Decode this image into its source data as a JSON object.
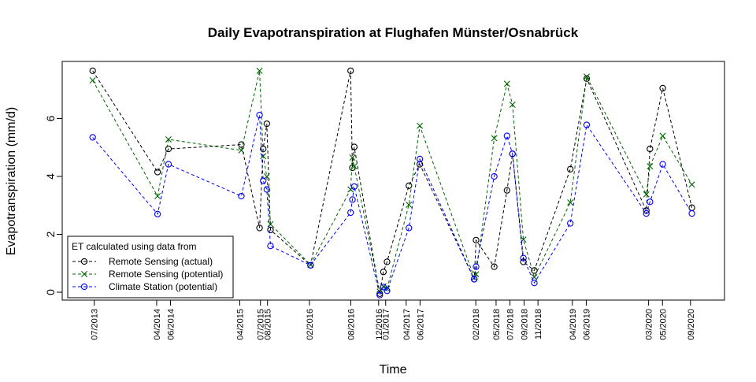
{
  "chart_data": {
    "type": "line",
    "title": "Daily Evapotranspiration at Flughafen Münster/Osnabrück",
    "xlabel": "Time",
    "ylabel": "Evapotranspiration (mm/d)",
    "ylim": [
      -0.2,
      7.9
    ],
    "y_ticks": [
      0,
      2,
      4,
      6
    ],
    "grid": false,
    "x_tick_labels": [
      "07/2013",
      "04/2014",
      "06/2014",
      "04/2015",
      "07/2015",
      "08/2015",
      "02/2016",
      "08/2016",
      "12/2016",
      "01/2017",
      "04/2017",
      "06/2017",
      "02/2018",
      "05/2018",
      "07/2018",
      "09/2018",
      "11/2018",
      "04/2019",
      "06/2019",
      "03/2020",
      "05/2020",
      "09/2020"
    ],
    "legend": {
      "title": "ET calculated using data from",
      "position": "bottom-left"
    },
    "series": [
      {
        "name": "Remote Sensing (actual)",
        "color": "#000000",
        "marker": "circle",
        "line": "dashed",
        "x": [
          "2013-07-08",
          "2014-04-19",
          "2014-06-06",
          "2015-04-22",
          "2015-07-11",
          "2015-07-27",
          "2015-08-12",
          "2015-08-28",
          "2016-02-20",
          "2016-08-14",
          "2016-08-22",
          "2016-08-30",
          "2016-12-20",
          "2017-01-05",
          "2017-01-21",
          "2017-04-27",
          "2017-06-14",
          "2018-02-08",
          "2018-02-16",
          "2018-05-07",
          "2018-07-02",
          "2018-07-26",
          "2018-09-12",
          "2018-10-30",
          "2019-04-06",
          "2019-06-17",
          "2020-03-05",
          "2020-03-21",
          "2020-05-16",
          "2020-09-21"
        ],
        "y": [
          7.65,
          4.15,
          4.95,
          5.1,
          2.22,
          4.95,
          5.82,
          2.15,
          0.93,
          7.65,
          4.3,
          5.02,
          -0.05,
          0.7,
          1.05,
          3.68,
          4.42,
          0.45,
          1.8,
          0.88,
          3.52,
          4.78,
          1.05,
          0.75,
          4.25,
          7.38,
          2.82,
          4.95,
          7.05,
          2.92
        ]
      },
      {
        "name": "Remote Sensing (potential)",
        "color": "#006400",
        "marker": "x",
        "line": "dashed",
        "x": [
          "2013-07-08",
          "2014-04-19",
          "2014-06-06",
          "2015-04-22",
          "2015-07-11",
          "2015-07-27",
          "2015-08-12",
          "2015-08-28",
          "2016-02-20",
          "2016-08-14",
          "2016-08-22",
          "2016-08-30",
          "2016-12-20",
          "2017-01-05",
          "2017-01-21",
          "2017-04-27",
          "2017-06-14",
          "2018-02-08",
          "2018-02-16",
          "2018-05-07",
          "2018-07-02",
          "2018-07-26",
          "2018-09-12",
          "2018-10-30",
          "2019-04-06",
          "2019-06-17",
          "2020-03-05",
          "2020-03-21",
          "2020-05-16",
          "2020-09-21"
        ],
        "y": [
          7.32,
          3.32,
          5.28,
          4.9,
          7.65,
          4.7,
          4.0,
          2.35,
          0.95,
          3.55,
          4.65,
          4.35,
          0.02,
          0.2,
          0.12,
          3.02,
          5.75,
          0.5,
          0.62,
          5.32,
          7.2,
          6.48,
          1.82,
          0.52,
          3.1,
          7.45,
          3.38,
          4.35,
          5.4,
          3.72
        ]
      },
      {
        "name": "Climate Station (potential)",
        "color": "#0000ff",
        "marker": "circle",
        "line": "dashed",
        "x": [
          "2013-07-08",
          "2014-04-19",
          "2014-06-06",
          "2015-04-22",
          "2015-07-11",
          "2015-07-27",
          "2015-08-12",
          "2015-08-28",
          "2016-02-20",
          "2016-08-14",
          "2016-08-22",
          "2016-08-30",
          "2016-12-20",
          "2017-01-05",
          "2017-01-21",
          "2017-04-27",
          "2017-06-14",
          "2018-02-08",
          "2018-02-16",
          "2018-05-07",
          "2018-07-02",
          "2018-07-26",
          "2018-09-12",
          "2018-10-30",
          "2019-04-06",
          "2019-06-17",
          "2020-03-05",
          "2020-03-21",
          "2020-05-16",
          "2020-09-21"
        ],
        "y": [
          5.35,
          2.7,
          4.42,
          3.32,
          6.12,
          3.85,
          3.55,
          1.6,
          0.93,
          2.75,
          3.2,
          3.65,
          -0.1,
          0.18,
          0.05,
          2.22,
          4.6,
          0.45,
          0.88,
          4.0,
          5.4,
          4.78,
          1.18,
          0.32,
          2.38,
          5.78,
          2.72,
          3.12,
          4.42,
          2.72
        ]
      }
    ]
  }
}
